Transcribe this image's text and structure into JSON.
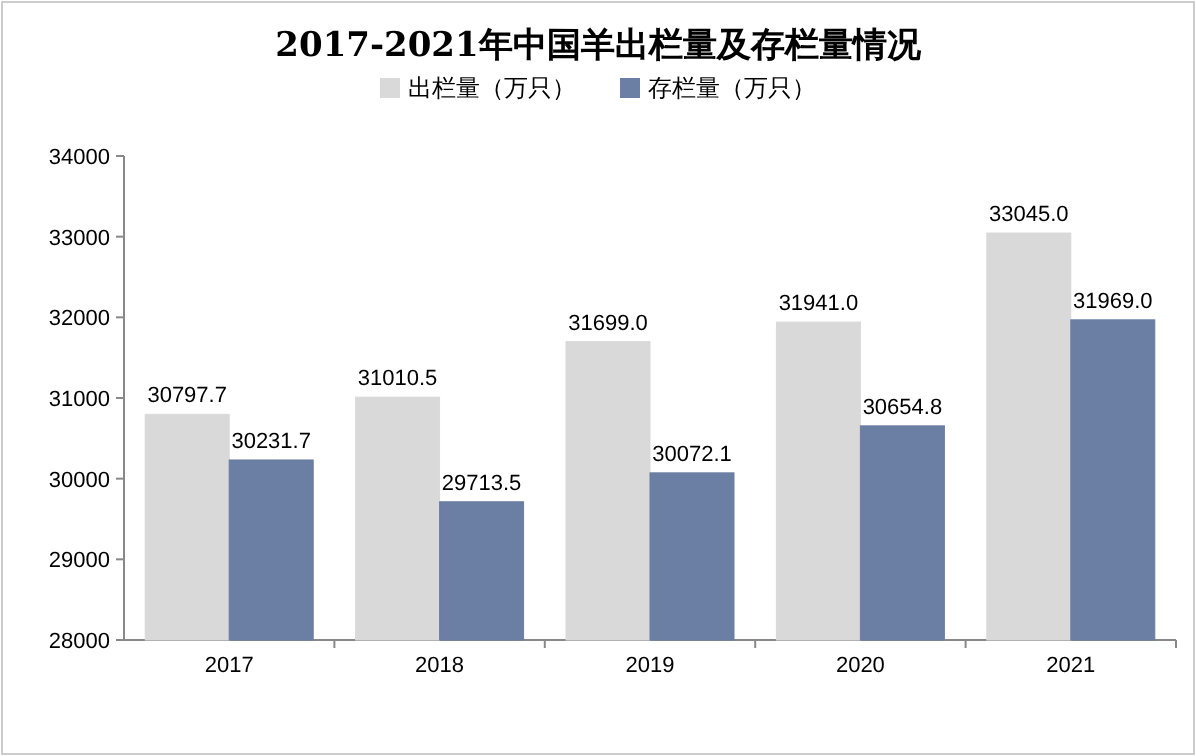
{
  "chart_data": {
    "type": "bar",
    "title": "2017-2021年中国羊出栏量及存栏量情况",
    "categories": [
      "2017",
      "2018",
      "2019",
      "2020",
      "2021"
    ],
    "series": [
      {
        "name": "出栏量（万只）",
        "color": "#d9d9d9",
        "values": [
          30797.7,
          31010.5,
          31699.0,
          31941.0,
          33045.0
        ],
        "value_labels": [
          "30797.7",
          "31010.5",
          "31699.0",
          "31941.0",
          "33045.0"
        ]
      },
      {
        "name": "存栏量（万只）",
        "color": "#6b7ea3",
        "values": [
          30231.7,
          29713.5,
          30072.1,
          30654.8,
          31969.0
        ],
        "value_labels": [
          "30231.7",
          "29713.5",
          "30072.1",
          "30654.8",
          "31969.0"
        ]
      }
    ],
    "ylim": [
      28000,
      34000
    ],
    "yticks": [
      28000,
      29000,
      30000,
      31000,
      32000,
      33000,
      34000
    ],
    "grid": false,
    "legend": "top"
  }
}
